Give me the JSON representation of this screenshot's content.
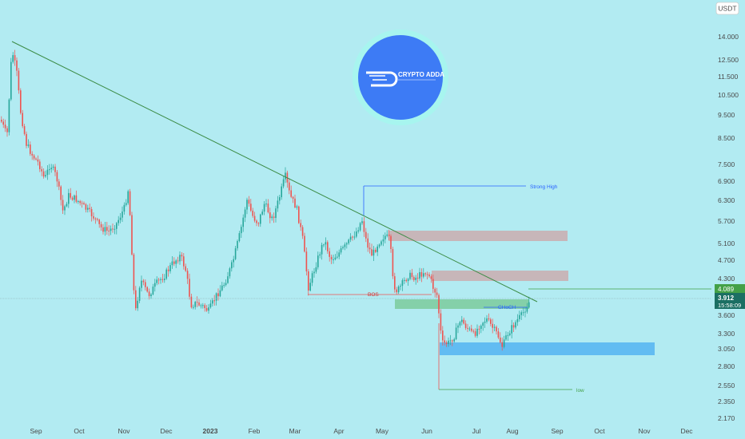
{
  "symbol_currency": "USDT",
  "colors": {
    "background": "#b2ebf2",
    "up": "#26a69a",
    "down": "#ef5350",
    "trendline": "#3c8c46",
    "annotation_blue": "#2962ff",
    "annotation_green": "#43a047",
    "zone_red": "rgba(239,83,80,0.35)",
    "zone_green": "rgba(76,175,80,0.45)",
    "zone_blue": "rgba(33,150,243,0.55)"
  },
  "logo": {
    "text": "CRYPTO ADDA",
    "color": "#3d7bf5",
    "ring": "#a7f5ef"
  },
  "price_axis": {
    "ticks": [
      "14.000",
      "12.500",
      "11.500",
      "10.500",
      "9.500",
      "8.500",
      "7.500",
      "6.900",
      "6.300",
      "5.700",
      "5.100",
      "4.700",
      "4.300",
      "3.600",
      "3.300",
      "3.050",
      "2.800",
      "2.550",
      "2.350",
      "2.170"
    ],
    "tags": {
      "level": "4.089",
      "current": "3.912",
      "countdown": "15:58:09"
    }
  },
  "time_axis": {
    "ticks": [
      "Sep",
      "Oct",
      "Nov",
      "Dec",
      "2023",
      "Feb",
      "Mar",
      "Apr",
      "May",
      "Jun",
      "Jul",
      "Aug",
      "Sep",
      "Oct",
      "Nov",
      "Dec"
    ]
  },
  "annotations": {
    "strong_high": "Strong High",
    "bos": "BOS",
    "choch": "CHoCH",
    "low": "low"
  },
  "chart_data": {
    "type": "candlestick",
    "y_scale": "log",
    "ylim": [
      2.1,
      15
    ],
    "x": [
      "Sep",
      "Oct",
      "Nov",
      "Dec",
      "2023",
      "Feb",
      "Mar",
      "Apr",
      "May",
      "Jun",
      "Jul",
      "Aug"
    ],
    "approx_close": [
      9.0,
      6.5,
      5.6,
      3.7,
      3.9,
      6.2,
      7.0,
      5.0,
      4.5,
      3.4,
      3.3,
      3.9
    ],
    "levels": {
      "strong_high": 6.8,
      "bos": 4.0,
      "low": 2.55,
      "level_tag": 4.089,
      "current_price": 3.912
    },
    "zones": [
      {
        "type": "supply",
        "from": 5.2,
        "to": 5.45
      },
      {
        "type": "supply",
        "from": 4.25,
        "to": 4.45
      },
      {
        "type": "demand",
        "from": 3.82,
        "to": 3.95
      },
      {
        "type": "demand",
        "from": 3.0,
        "to": 3.15
      }
    ]
  }
}
